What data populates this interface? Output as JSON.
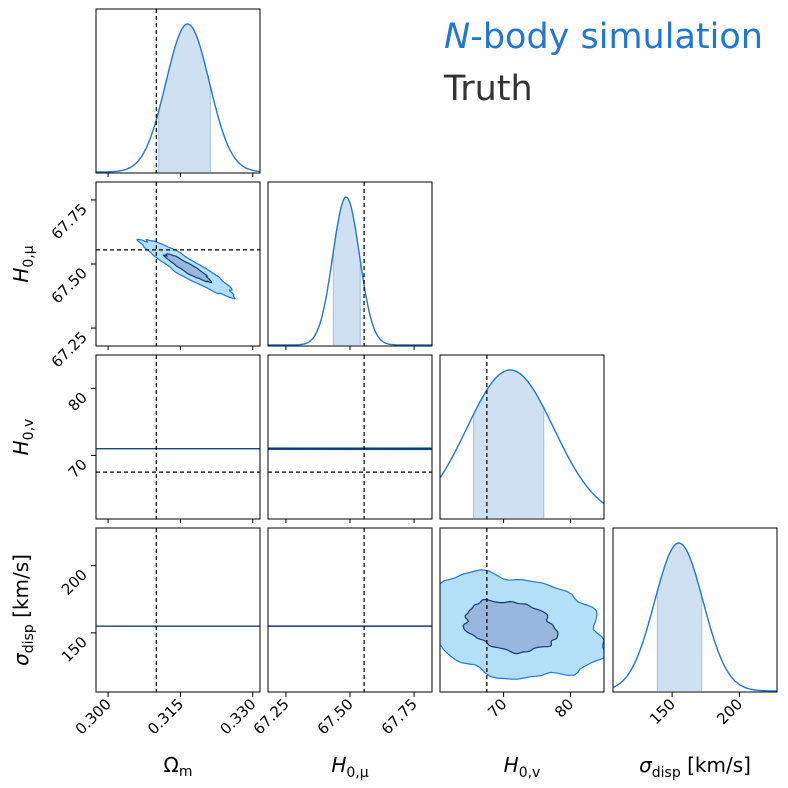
{
  "legend": {
    "simulation": {
      "symbol": "N",
      "rest": "-body simulation",
      "color": "#1f77d4"
    },
    "truth": {
      "label": "Truth",
      "color": "#333333"
    }
  },
  "colors": {
    "line": "#1f77d4",
    "fill_inner": "#8fa9d6",
    "fill_outer": "#b3dff9",
    "contour_dark": "#173a6e",
    "truth_line": "#000000",
    "band": "#cfe0f3"
  },
  "chart_data": {
    "type": "corner",
    "parameters": [
      {
        "key": "om",
        "label": "Ωm",
        "truth": 0.31,
        "range": [
          0.2975,
          0.3315
        ],
        "ticks": [
          "0.300",
          "0.315",
          "0.330"
        ],
        "tick_values": [
          0.3,
          0.315,
          0.33
        ],
        "posterior_mean": 0.3165,
        "posterior_sd": 0.0045,
        "interval_68": [
          0.3105,
          0.3212
        ]
      },
      {
        "key": "h0mu",
        "label": "H0,μ",
        "truth": 67.555,
        "range": [
          67.18,
          67.82
        ],
        "ticks": [
          "67.25",
          "67.50",
          "67.75"
        ],
        "tick_values": [
          67.25,
          67.5,
          67.75
        ],
        "posterior_mean": 67.485,
        "posterior_sd": 0.052,
        "interval_68": [
          67.435,
          67.54
        ]
      },
      {
        "key": "h0v",
        "label": "H0,v",
        "truth": 67.5,
        "range": [
          60.5,
          85
        ],
        "ticks": [
          "70",
          "80"
        ],
        "tick_values": [
          70,
          80
        ],
        "posterior_mean": 71,
        "posterior_sd": 6.5,
        "interval_68": [
          65.5,
          76
        ]
      },
      {
        "key": "sig",
        "label": "σdisp [km/s]",
        "truth": null,
        "range": [
          106,
          228
        ],
        "ticks": [
          "150",
          "200"
        ],
        "tick_values": [
          150,
          200
        ],
        "posterior_mean": 155,
        "posterior_sd": 18,
        "interval_68": [
          139,
          172
        ]
      }
    ],
    "correlations": [
      {
        "pair": [
          "om",
          "h0mu"
        ],
        "rho": -0.93
      },
      {
        "pair": [
          "om",
          "h0v"
        ],
        "rho": 0.0
      },
      {
        "pair": [
          "h0mu",
          "h0v"
        ],
        "rho": 0.0
      },
      {
        "pair": [
          "om",
          "sig"
        ],
        "rho": 0.0
      },
      {
        "pair": [
          "h0mu",
          "sig"
        ],
        "rho": 0.0
      },
      {
        "pair": [
          "h0v",
          "sig"
        ],
        "rho": -0.25
      }
    ],
    "contour_levels": [
      "1-sigma",
      "2-sigma"
    ]
  }
}
